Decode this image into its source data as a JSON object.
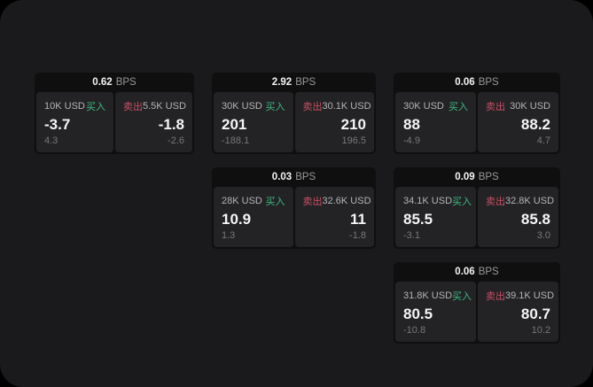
{
  "labels": {
    "bps_unit": "BPS",
    "buy": "买入",
    "sell": "卖出"
  },
  "colors": {
    "surface_bg": "#1a1a1c",
    "card_bg": "#0f0f10",
    "panel_bg": "#232326",
    "value_white": "#f5f5f5",
    "label_gray": "#b4b4b7",
    "sub_gray": "#78787b",
    "bps_unit_gray": "#99999c",
    "buy_green": "#3cba7f",
    "sell_red": "#ca4f63"
  },
  "cards": [
    {
      "row": 1,
      "col": 1,
      "bps": "0.62",
      "buy": {
        "amount": "10K USD",
        "value": "-3.7",
        "sub": "4.3"
      },
      "sell": {
        "amount": "5.5K USD",
        "value": "-1.8",
        "sub": "-2.6"
      }
    },
    {
      "row": 1,
      "col": 2,
      "bps": "2.92",
      "buy": {
        "amount": "30K USD",
        "value": "201",
        "sub": "-188.1"
      },
      "sell": {
        "amount": "30.1K USD",
        "value": "210",
        "sub": "196.5"
      }
    },
    {
      "row": 1,
      "col": 3,
      "bps": "0.06",
      "buy": {
        "amount": "30K USD",
        "value": "88",
        "sub": "-4.9"
      },
      "sell": {
        "amount": "30K USD",
        "value": "88.2",
        "sub": "4.7"
      }
    },
    {
      "row": 2,
      "col": 2,
      "bps": "0.03",
      "buy": {
        "amount": "28K USD",
        "value": "10.9",
        "sub": "1.3"
      },
      "sell": {
        "amount": "32.6K USD",
        "value": "11",
        "sub": "-1.8"
      }
    },
    {
      "row": 2,
      "col": 3,
      "bps": "0.09",
      "buy": {
        "amount": "34.1K USD",
        "value": "85.5",
        "sub": "-3.1"
      },
      "sell": {
        "amount": "32.8K USD",
        "value": "85.8",
        "sub": "3.0"
      }
    },
    {
      "row": 3,
      "col": 3,
      "bps": "0.06",
      "buy": {
        "amount": "31.8K USD",
        "value": "80.5",
        "sub": "-10.8"
      },
      "sell": {
        "amount": "39.1K USD",
        "value": "80.7",
        "sub": "10.2"
      }
    }
  ]
}
